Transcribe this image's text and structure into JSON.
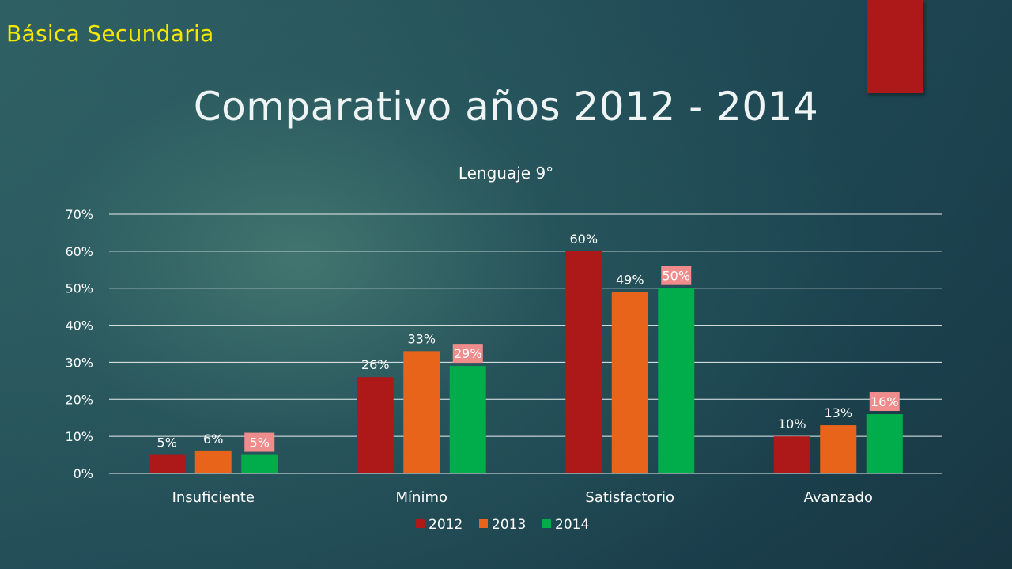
{
  "slide": {
    "subtitle": "Básica Secundaria",
    "title": "Comparativo años 2012 - 2014"
  },
  "colors": {
    "subtitle": "#f5e800",
    "accent_tab": "#ad1919",
    "series_2012": "#ad1919",
    "series_2013": "#e8641a",
    "series_2014": "#00ad4a",
    "label_box_2014": "#f08c8c"
  },
  "chart_data": {
    "type": "bar",
    "title": "Lenguaje 9°",
    "categories": [
      "Insuficiente",
      "Mínimo",
      "Satisfactorio",
      "Avanzado"
    ],
    "series": [
      {
        "name": "2012",
        "values": [
          5,
          26,
          60,
          10
        ],
        "labels": [
          "5%",
          "26%",
          "60%",
          "10%"
        ],
        "color": "#ad1919"
      },
      {
        "name": "2013",
        "values": [
          6,
          33,
          49,
          13
        ],
        "labels": [
          "6%",
          "33%",
          "49%",
          "13%"
        ],
        "color": "#e8641a"
      },
      {
        "name": "2014",
        "values": [
          5,
          29,
          50,
          16
        ],
        "labels": [
          "5%",
          "29%",
          "50%",
          "16%"
        ],
        "color": "#00ad4a"
      }
    ],
    "ylim": [
      0,
      70
    ],
    "yticks": [
      0,
      10,
      20,
      30,
      40,
      50,
      60,
      70
    ],
    "ytick_labels": [
      "0%",
      "10%",
      "20%",
      "30%",
      "40%",
      "50%",
      "60%",
      "70%"
    ],
    "grid": true,
    "legend_position": "bottom"
  }
}
